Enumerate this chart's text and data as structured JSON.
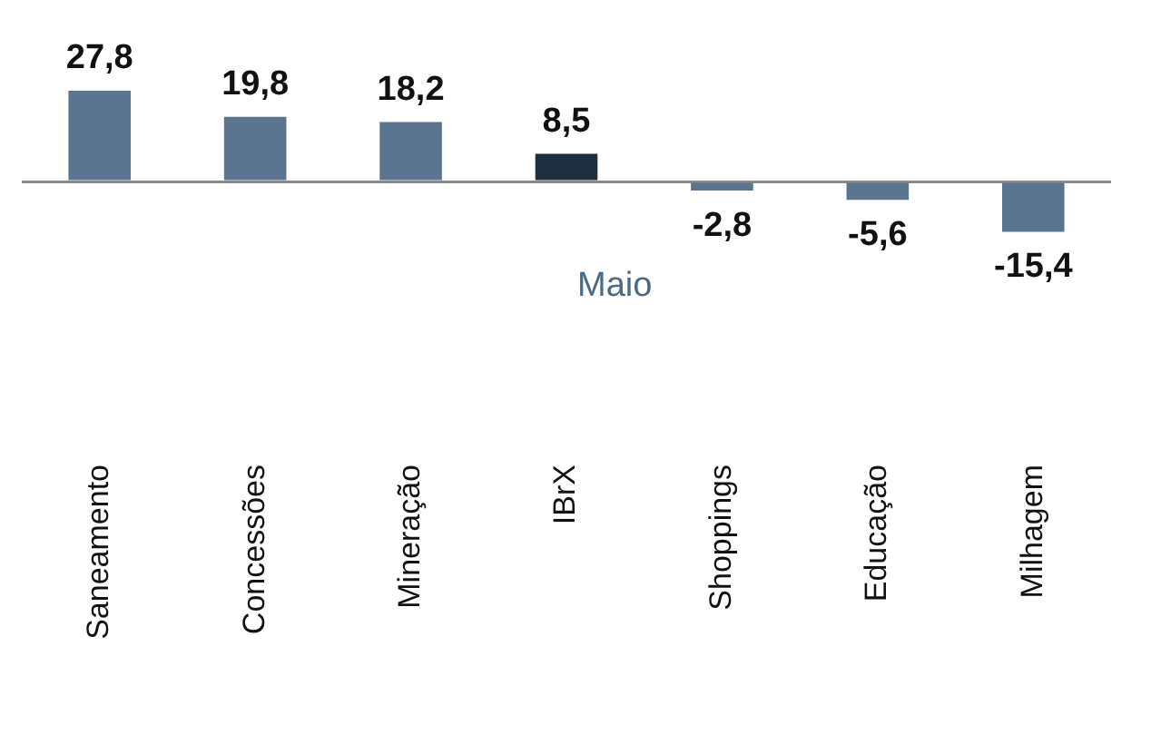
{
  "chart_data": {
    "type": "bar",
    "categories": [
      "Saneamento",
      "Concessões",
      "Mineração",
      "IBrX",
      "Shoppings",
      "Educação",
      "Milhagem"
    ],
    "values": [
      27.8,
      19.8,
      18.2,
      8.5,
      -2.8,
      -5.6,
      -15.4
    ],
    "colors": [
      "#5b7490",
      "#5b7490",
      "#5b7490",
      "#1f2f40",
      "#5b7490",
      "#5b7490",
      "#5b7490"
    ],
    "value_labels": [
      "27,8",
      "19,8",
      "18,2",
      "8,5",
      "-2,8",
      "-5,6",
      "-15,4"
    ],
    "annotations": [
      "Maio"
    ],
    "grid": false,
    "legend": false
  }
}
